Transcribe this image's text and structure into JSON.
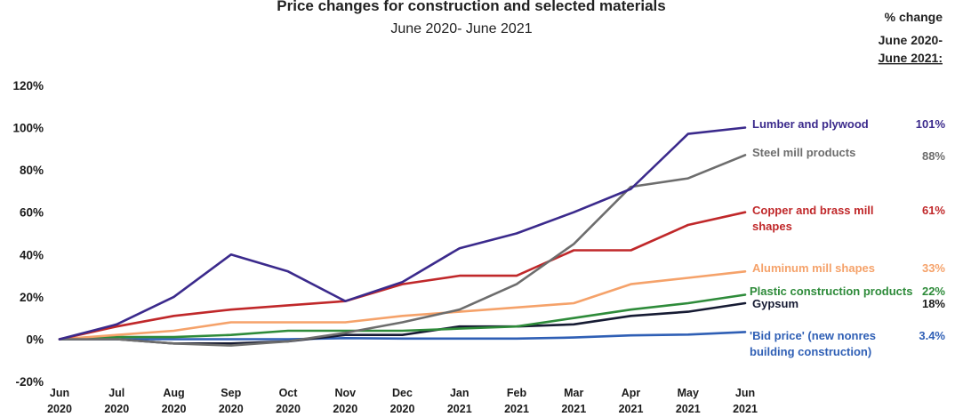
{
  "chart_data": {
    "type": "line",
    "title": "Price changes for construction and selected materials",
    "subtitle": "June 2020- June 2021",
    "change_header": [
      "% change",
      "June 2020-",
      "June 2021:"
    ],
    "x": [
      "Jun 2020",
      "Jul 2020",
      "Aug 2020",
      "Sep 2020",
      "Oct 2020",
      "Nov 2020",
      "Dec 2020",
      "Jan 2021",
      "Feb 2021",
      "Mar 2021",
      "Apr 2021",
      "May 2021",
      "Jun 2021"
    ],
    "x_ticks": [
      [
        "Jun",
        "2020"
      ],
      [
        "Jul",
        "2020"
      ],
      [
        "Aug",
        "2020"
      ],
      [
        "Sep",
        "2020"
      ],
      [
        "Oct",
        "2020"
      ],
      [
        "Nov",
        "2020"
      ],
      [
        "Dec",
        "2020"
      ],
      [
        "Jan",
        "2021"
      ],
      [
        "Feb",
        "2021"
      ],
      [
        "Mar",
        "2021"
      ],
      [
        "Apr",
        "2021"
      ],
      [
        "May",
        "2021"
      ],
      [
        "Jun",
        "2021"
      ]
    ],
    "y_ticks": [
      "120%",
      "100%",
      "80%",
      "60%",
      "40%",
      "20%",
      "0%",
      "-20%"
    ],
    "ylim": [
      -20,
      120
    ],
    "grid": false,
    "legend": "direct labels at line ends (right)",
    "series": [
      {
        "name": "Lumber and plywood",
        "label_lines": [
          "Lumber and plywood"
        ],
        "pct": "101%",
        "color": "#3b2a8c",
        "values": [
          0,
          7,
          20,
          40,
          32,
          18,
          27,
          43,
          50,
          60,
          71,
          97,
          100
        ]
      },
      {
        "name": "Steel mill products",
        "label_lines": [
          "Steel mill products"
        ],
        "pct": "88%",
        "color": "#6d6d6d",
        "values": [
          0,
          0,
          -2,
          -3,
          -1,
          3,
          8,
          14,
          26,
          45,
          72,
          76,
          87
        ]
      },
      {
        "name": "Copper and brass mill shapes",
        "label_lines": [
          "Copper and brass mill",
          "shapes"
        ],
        "pct": "61%",
        "color": "#c0282a",
        "values": [
          0,
          6,
          11,
          14,
          16,
          18,
          26,
          30,
          30,
          42,
          42,
          54,
          60
        ]
      },
      {
        "name": "Aluminum mill shapes",
        "label_lines": [
          "Aluminum mill shapes"
        ],
        "pct": "33%",
        "color": "#f5a26a",
        "values": [
          0,
          2,
          4,
          8,
          8,
          8,
          11,
          13,
          15,
          17,
          26,
          29,
          32
        ]
      },
      {
        "name": "Plastic construction products",
        "label_lines": [
          "Plastic construction products"
        ],
        "pct": "22%",
        "color": "#2e8b3a",
        "values": [
          0,
          1,
          1,
          2,
          4,
          4,
          4,
          5,
          6,
          10,
          14,
          17,
          21
        ]
      },
      {
        "name": "Gypsum",
        "label_lines": [
          "Gypsum"
        ],
        "pct": "18%",
        "color": "#161b33",
        "values": [
          0,
          0,
          -2,
          -2,
          -1,
          2,
          2,
          6,
          6,
          7,
          11,
          13,
          17
        ]
      },
      {
        "name": "'Bid price' (new nonres building construction)",
        "label_lines": [
          "'Bid price' (new nonres",
          "building construction)"
        ],
        "pct": "3.4%",
        "color": "#2f5fb5",
        "values": [
          0,
          0,
          0,
          0,
          0,
          0.5,
          0.3,
          0.3,
          0.3,
          0.8,
          1.8,
          2.2,
          3.4
        ]
      }
    ]
  }
}
